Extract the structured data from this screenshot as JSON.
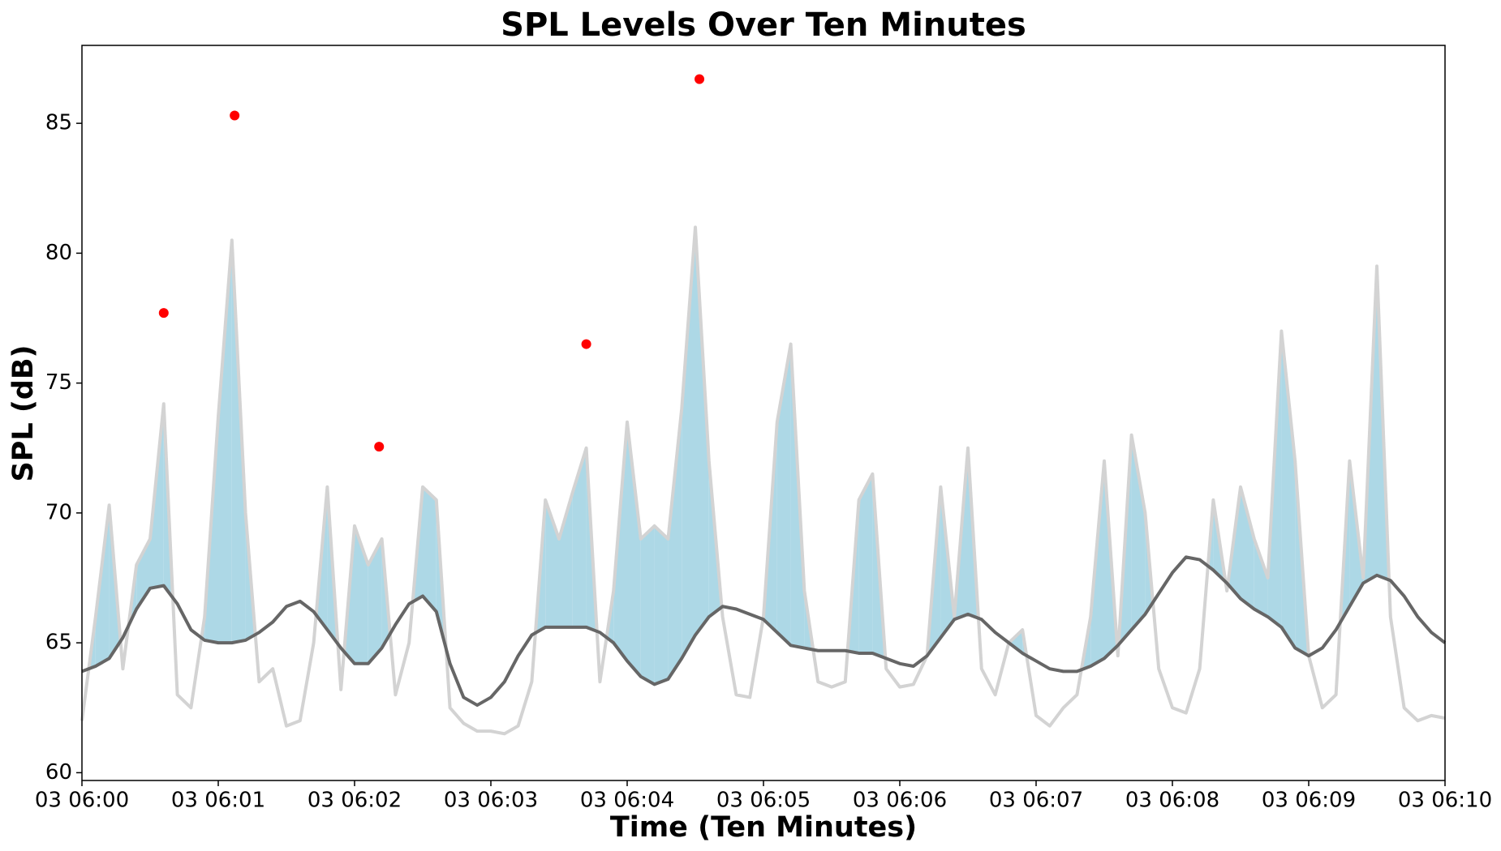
{
  "chart_data": {
    "type": "line",
    "title": "SPL Levels Over Ten Minutes",
    "xlabel": "Time (Ten Minutes)",
    "ylabel": "SPL (dB)",
    "xlim": [
      0,
      10
    ],
    "ylim": [
      59.7,
      88
    ],
    "xticks": [
      {
        "value": 0,
        "label": "03 06:00"
      },
      {
        "value": 1,
        "label": "03 06:01"
      },
      {
        "value": 2,
        "label": "03 06:02"
      },
      {
        "value": 3,
        "label": "03 06:03"
      },
      {
        "value": 4,
        "label": "03 06:04"
      },
      {
        "value": 5,
        "label": "03 06:05"
      },
      {
        "value": 6,
        "label": "03 06:06"
      },
      {
        "value": 7,
        "label": "03 06:07"
      },
      {
        "value": 8,
        "label": "03 06:08"
      },
      {
        "value": 9,
        "label": "03 06:09"
      },
      {
        "value": 10,
        "label": "03 06:10"
      }
    ],
    "yticks": [
      60,
      65,
      70,
      75,
      80,
      85
    ],
    "grid": false,
    "x": [
      0,
      0.1,
      0.2,
      0.3,
      0.4,
      0.5,
      0.6,
      0.7,
      0.8,
      0.9,
      1,
      1.1,
      1.2,
      1.3,
      1.4,
      1.5,
      1.6,
      1.7,
      1.8,
      1.9,
      2,
      2.1,
      2.2,
      2.3,
      2.4,
      2.5,
      2.6,
      2.7,
      2.8,
      2.9,
      3,
      3.1,
      3.2,
      3.3,
      3.4,
      3.5,
      3.6,
      3.7,
      3.8,
      3.9,
      4,
      4.1,
      4.2,
      4.3,
      4.4,
      4.5,
      4.6,
      4.7,
      4.8,
      4.9,
      5,
      5.1,
      5.2,
      5.3,
      5.4,
      5.5,
      5.6,
      5.7,
      5.8,
      5.9,
      6,
      6.1,
      6.2,
      6.3,
      6.4,
      6.5,
      6.6,
      6.7,
      6.8,
      6.9,
      7,
      7.1,
      7.2,
      7.3,
      7.4,
      7.5,
      7.6,
      7.7,
      7.8,
      7.9,
      8,
      8.1,
      8.2,
      8.3,
      8.4,
      8.5,
      8.6,
      8.7,
      8.8,
      8.9,
      9,
      9.1,
      9.2,
      9.3,
      9.4,
      9.5,
      9.6,
      9.7,
      9.8,
      9.9,
      10
    ],
    "series": [
      {
        "color": "#d3d3d3",
        "fill_color": "#add8e6",
        "values": [
          62,
          66,
          70.3,
          64,
          68,
          69,
          74.2,
          63,
          62.5,
          66,
          73.7,
          80.5,
          70,
          63.5,
          64,
          61.8,
          62,
          65,
          71,
          63.2,
          69.5,
          68,
          69,
          63,
          65,
          71,
          70.5,
          62.5,
          61.9,
          61.6,
          61.6,
          61.5,
          61.8,
          63.5,
          70.5,
          69,
          70.8,
          72.5,
          63.5,
          67,
          73.5,
          69,
          69.5,
          69,
          74,
          81,
          72,
          66,
          63,
          62.9,
          66,
          73.5,
          76.5,
          67,
          63.5,
          63.3,
          63.5,
          70.5,
          71.5,
          64,
          63.3,
          63.4,
          64.5,
          71,
          66,
          72.5,
          64,
          63,
          65,
          65.5,
          62.2,
          61.8,
          62.5,
          63,
          66,
          72,
          64.5,
          73,
          70,
          64,
          62.5,
          62.3,
          64,
          70.5,
          67,
          71,
          69,
          67.5,
          77,
          72,
          64.5,
          62.5,
          63,
          72,
          67.5,
          79.5,
          66,
          62.5,
          62,
          62.2,
          62.1
        ]
      },
      {
        "color": "#666666",
        "values": [
          63.9,
          64.1,
          64.4,
          65.2,
          66.3,
          67.1,
          67.2,
          66.5,
          65.5,
          65.1,
          65,
          65,
          65.1,
          65.4,
          65.8,
          66.4,
          66.6,
          66.2,
          65.5,
          64.8,
          64.2,
          64.2,
          64.8,
          65.7,
          66.5,
          66.8,
          66.2,
          64.2,
          62.9,
          62.6,
          62.9,
          63.5,
          64.5,
          65.3,
          65.6,
          65.6,
          65.6,
          65.6,
          65.4,
          65,
          64.3,
          63.7,
          63.4,
          63.6,
          64.4,
          65.3,
          66,
          66.4,
          66.3,
          66.1,
          65.9,
          65.4,
          64.9,
          64.8,
          64.7,
          64.7,
          64.7,
          64.6,
          64.6,
          64.4,
          64.2,
          64.1,
          64.5,
          65.2,
          65.9,
          66.1,
          65.9,
          65.4,
          65,
          64.6,
          64.3,
          64,
          63.9,
          63.9,
          64.1,
          64.4,
          64.9,
          65.5,
          66.1,
          66.9,
          67.7,
          68.3,
          68.2,
          67.8,
          67.3,
          66.7,
          66.3,
          66,
          65.6,
          64.8,
          64.5,
          64.8,
          65.5,
          66.4,
          67.3,
          67.6,
          67.4,
          66.8,
          66,
          65.4,
          65
        ]
      }
    ],
    "points": {
      "color": "#ff0000",
      "x": [
        0.6,
        1.12,
        2.18,
        3.7,
        4.53
      ],
      "values": [
        77.7,
        85.3,
        72.55,
        76.5,
        86.7
      ]
    }
  }
}
